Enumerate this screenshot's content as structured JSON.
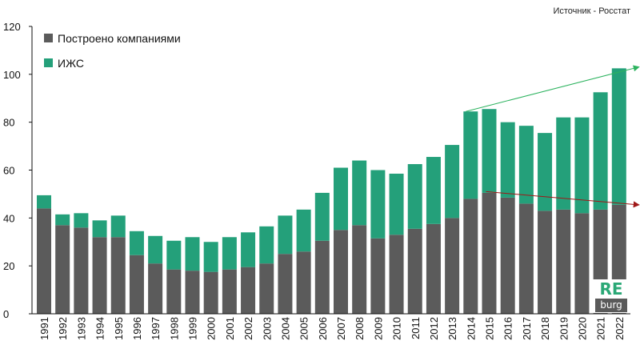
{
  "source_text": "Источник - Росстат",
  "logo": {
    "line1": "RE",
    "line2": "burg"
  },
  "colors": {
    "companies": "#5b5b5b",
    "izhs": "#24a07a",
    "trend_up": "#2db35f",
    "trend_down": "#a01818",
    "axis": "#111111"
  },
  "chart_data": {
    "type": "bar",
    "stacked": true,
    "categories": [
      "1991",
      "1992",
      "1993",
      "1994",
      "1995",
      "1996",
      "1997",
      "1998",
      "1999",
      "2000",
      "2001",
      "2002",
      "2003",
      "2004",
      "2005",
      "2006",
      "2007",
      "2008",
      "2009",
      "2010",
      "2011",
      "2012",
      "2013",
      "2014",
      "2015",
      "2016",
      "2017",
      "2018",
      "2019",
      "2020",
      "2021",
      "2022"
    ],
    "series": [
      {
        "name": "Построено компаниями",
        "values": [
          44,
          37,
          36,
          32,
          32,
          24.5,
          21,
          18.5,
          18,
          17.5,
          18.5,
          19.5,
          21,
          25,
          26,
          30.5,
          35,
          37,
          31.5,
          33,
          35.5,
          37.5,
          40,
          48,
          50.5,
          48.5,
          46,
          43,
          43.5,
          42,
          43.5,
          45.5
        ]
      },
      {
        "name": "ИЖС",
        "values": [
          5.5,
          4.5,
          6,
          7,
          9,
          10,
          11.5,
          12,
          14,
          12.5,
          13.5,
          14.5,
          15.5,
          16,
          17.5,
          20,
          26,
          27,
          28.5,
          25.5,
          27,
          28,
          30.5,
          36.5,
          35,
          31.5,
          32.5,
          32.5,
          38.5,
          40,
          49,
          57
        ]
      }
    ],
    "ylim": [
      0,
      120
    ],
    "yticks": [
      0,
      20,
      40,
      60,
      80,
      100,
      120
    ],
    "grid": false,
    "legend_position": "top-left",
    "trend_lines": [
      {
        "name": "total-trend",
        "from": [
          "2014",
          84.5
        ],
        "to": [
          "2022",
          103
        ]
      },
      {
        "name": "companies-trend",
        "from": [
          "2015",
          51
        ],
        "to": [
          "2022",
          45.5
        ]
      }
    ]
  }
}
